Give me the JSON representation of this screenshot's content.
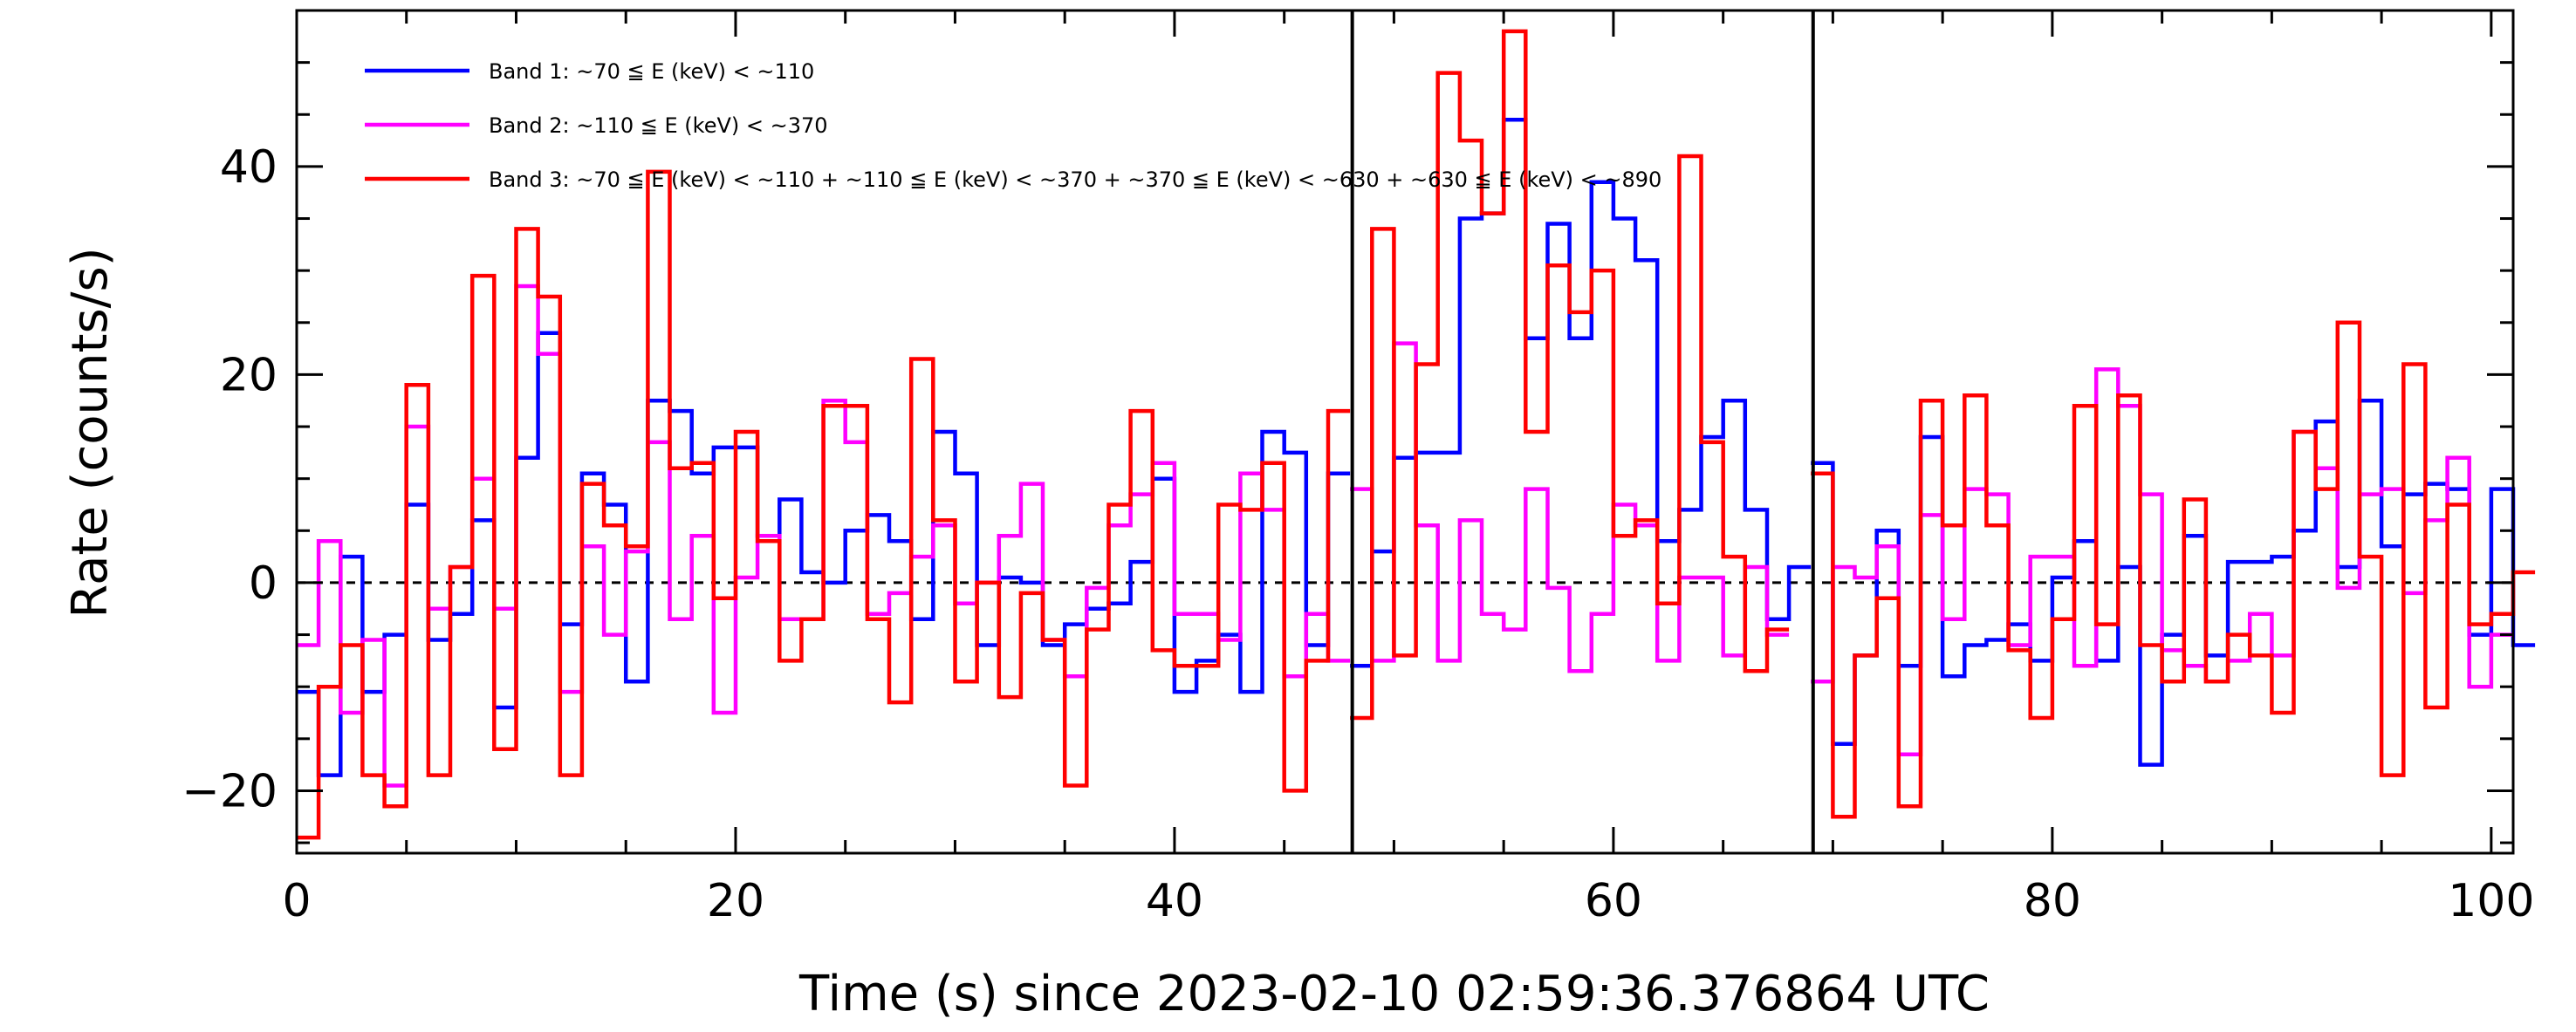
{
  "chart_data": {
    "type": "line",
    "step": true,
    "title": "",
    "xlabel": "Time (s) since 2023-02-10 02:59:36.376864 UTC",
    "ylabel": "Rate (counts/s)",
    "xlim": [
      0,
      101
    ],
    "ylim": [
      -26,
      55
    ],
    "xticks": [
      0,
      20,
      40,
      60,
      80,
      100
    ],
    "xtick_labels": [
      "0",
      "20",
      "40",
      "60",
      "80",
      "100"
    ],
    "yticks": [
      -20,
      0,
      20,
      40
    ],
    "ytick_labels": [
      "−20",
      "0",
      "20",
      "40"
    ],
    "x_minor_step": 5,
    "y_minor_step": 5,
    "reference_line": {
      "y": 0,
      "style": "dashed"
    },
    "vertical_lines": [
      48.1,
      69.1
    ],
    "bin_width": 1.0,
    "legend_position": "top-left",
    "series": [
      {
        "name": "Band 1: ~70 ≦ E (keV) < ~110",
        "color": "#0000ff",
        "segments": [
          {
            "start": 0,
            "values": [
              -10.5,
              -18.5,
              2.5,
              -10.5,
              -5,
              7.5,
              -5.5,
              -3,
              6,
              -12,
              12,
              24,
              -4,
              10.5,
              7.5,
              -9.5,
              17.5,
              16.5,
              10.5,
              13,
              13,
              4.5,
              8,
              1,
              0,
              5,
              6.5,
              4,
              -3.5,
              14.5,
              10.5,
              -6,
              0.5,
              0,
              -6,
              -4,
              -2.5,
              -2,
              2,
              10,
              -10.5,
              -7.5,
              -5,
              -10.5,
              14.5,
              12.5,
              -6,
              10.5
            ]
          },
          {
            "start": 48,
            "values": [
              -8,
              3,
              12,
              12.5,
              12.5,
              35,
              35.5,
              44.5,
              23.5,
              34.5,
              23.5,
              38.5,
              35,
              31,
              4,
              7,
              14,
              17.5,
              7,
              -3.5,
              1.5
            ]
          },
          {
            "start": 69,
            "values": [
              11.5,
              -15.5,
              -7,
              5,
              -8,
              14,
              -9,
              -6,
              -5.5,
              -4,
              -7.5,
              0.5,
              4,
              -7.5,
              1.5,
              -17.5,
              -5,
              4.5,
              -7,
              2,
              2,
              2.5,
              5,
              15.5,
              1.5,
              17.5,
              3.5,
              8.5,
              9.5,
              9,
              -5,
              9,
              -6
            ]
          }
        ]
      },
      {
        "name": "Band 2: ~110 ≦ E (keV) < ~370",
        "color": "#ff00ff",
        "segments": [
          {
            "start": 0,
            "values": [
              -6,
              4,
              -12.5,
              -5.5,
              -19.5,
              15,
              -2.5,
              1.5,
              10,
              -2.5,
              28.5,
              22,
              -10.5,
              3.5,
              -5,
              3,
              13.5,
              -3.5,
              4.5,
              -12.5,
              0.5,
              4.5,
              -3.5,
              -3.5,
              17.5,
              13.5,
              -3,
              -1,
              2.5,
              5.5,
              -2,
              0,
              4.5,
              9.5,
              -5.5,
              -9,
              -0.5,
              5.5,
              8.5,
              11.5,
              -3,
              -3,
              -5.5,
              10.5,
              7,
              -9,
              -3,
              -7.5
            ]
          },
          {
            "start": 48,
            "values": [
              9,
              -7.5,
              23,
              5.5,
              -7.5,
              6,
              -3,
              -4.5,
              9,
              -0.5,
              -8.5,
              -3,
              7.5,
              5.5,
              -7.5,
              0.5,
              0.5,
              -7,
              1.5,
              -5
            ]
          },
          {
            "start": 69,
            "values": [
              -9.5,
              1.5,
              0.5,
              3.5,
              -16.5,
              6.5,
              -3.5,
              9,
              8.5,
              -6,
              2.5,
              2.5,
              -8,
              20.5,
              17,
              8.5,
              -6.5,
              -8,
              -9.5,
              -7.5,
              -3,
              -7,
              14.5,
              11,
              -0.5,
              8.5,
              9,
              -1,
              6,
              12,
              -10,
              -5
            ]
          }
        ]
      },
      {
        "name": "Band 3: ~70 ≦ E (keV) < ~110 + ~110 ≦ E (keV) < ~370 + ~370 ≦ E (keV) < ~630 + ~630 ≦ E (keV) < ~890",
        "color": "#ff0000",
        "segments": [
          {
            "start": 0,
            "values": [
              -24.5,
              -10,
              -6,
              -18.5,
              -21.5,
              19,
              -18.5,
              1.5,
              29.5,
              -16,
              34,
              27.5,
              -18.5,
              9.5,
              5.5,
              3.5,
              39.5,
              11,
              11.5,
              -1.5,
              14.5,
              4,
              -7.5,
              -3.5,
              17,
              17,
              -3.5,
              -11.5,
              21.5,
              6,
              -9.5,
              0,
              -11,
              -1,
              -5.5,
              -19.5,
              -4.5,
              7.5,
              16.5,
              -6.5,
              -8,
              -8,
              7.5,
              7,
              11.5,
              -20,
              -7.5,
              16.5
            ]
          },
          {
            "start": 48,
            "values": [
              -13,
              34,
              -7,
              21,
              49,
              42.5,
              35.5,
              53,
              14.5,
              30.5,
              26,
              30,
              4.5,
              6,
              -2,
              41,
              13.5,
              2.5,
              -8.5,
              -4.5
            ]
          },
          {
            "start": 69,
            "values": [
              10.5,
              -22.5,
              -7,
              -1.5,
              -21.5,
              17.5,
              5.5,
              18,
              5.5,
              -6.5,
              -13,
              -3.5,
              17,
              -4,
              18,
              -6,
              -9.5,
              8,
              -9.5,
              -5,
              -7,
              -12.5,
              14.5,
              9,
              25,
              2.5,
              -18.5,
              21,
              -12,
              7.5,
              -4,
              -3,
              1
            ]
          }
        ]
      }
    ]
  }
}
